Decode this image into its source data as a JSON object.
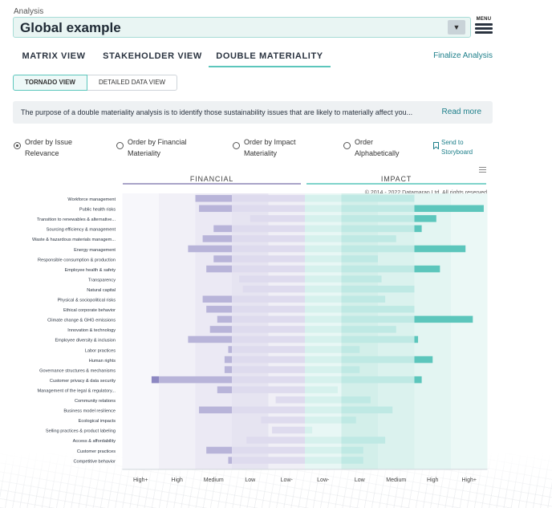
{
  "header": {
    "section_label": "Analysis",
    "selected_analysis": "Global example",
    "menu_label": "MENU"
  },
  "tabs": [
    {
      "label": "MATRIX VIEW",
      "active": false
    },
    {
      "label": "STAKEHOLDER VIEW",
      "active": false
    },
    {
      "label": "DOUBLE MATERIALITY",
      "active": true
    }
  ],
  "finalize_label": "Finalize Analysis",
  "subtabs": [
    {
      "label": "TORNADO VIEW",
      "active": true
    },
    {
      "label": "DETAILED DATA VIEW",
      "active": false
    }
  ],
  "info": {
    "text": "The purpose of a double materiality analysis is to identify those sustainability issues that are likely to materially affect you...",
    "read_more": "Read more"
  },
  "order_options": [
    {
      "label": "Order by Issue Relevance",
      "checked": true
    },
    {
      "label": "Order by Financial Materiality",
      "checked": false
    },
    {
      "label": "Order by Impact Materiality",
      "checked": false
    },
    {
      "label": "Order Alphabetically",
      "checked": false
    }
  ],
  "send_to_storyboard": "Send to Storyboard",
  "colors": {
    "accent": "#5cc6bc",
    "link": "#1d7f8a",
    "financial_dark": "#8d88c2",
    "financial_mid": "#b8b4d9",
    "impact_dark": "#5cc6bc",
    "impact_mid": "#a7e2dc"
  },
  "chart_data": {
    "type": "bar",
    "subtype": "tornado",
    "financial_label": "FINANCIAL",
    "impact_label": "IMPACT",
    "copyright": "© 2014 - 2022 Datamaran Ltd. All rights reserved",
    "x_tick_labels_financial": [
      "High+",
      "High",
      "Medium",
      "Low",
      "Low-"
    ],
    "x_tick_labels_impact": [
      "Low-",
      "Low",
      "Medium",
      "High",
      "High+"
    ],
    "scale_note": "Values on 0–5 scale; 0=center, 5=High+",
    "categories": [
      "Workforce management",
      "Public health risks",
      "Transition to renewables & alternative...",
      "Sourcing efficiency & management",
      "Waste & hazardous materials managem...",
      "Energy management",
      "Responsible consumption & production",
      "Employee health & safety",
      "Transparency",
      "Natural capital",
      "Physical & sociopolitical risks",
      "Ethical corporate behavior",
      "Climate change & GHG emissions",
      "Innovation & technology",
      "Employee diversity & inclusion",
      "Labor practices",
      "Human rights",
      "Governance structures & mechanisms",
      "Customer privacy & data security",
      "Management of the legal & regulatory...",
      "Community relations",
      "Business model resilience",
      "Ecological impacts",
      "Selling practices & product labeling",
      "Access & affordability",
      "Customer practices",
      "Competitive behavior"
    ],
    "series": [
      {
        "name": "Financial",
        "values": [
          3.0,
          2.9,
          1.5,
          2.5,
          2.8,
          3.2,
          2.5,
          2.7,
          1.8,
          1.7,
          2.8,
          2.7,
          2.4,
          2.6,
          3.2,
          2.1,
          2.2,
          2.2,
          4.2,
          2.4,
          0.8,
          2.9,
          1.2,
          0.9,
          1.6,
          2.7,
          2.1
        ]
      },
      {
        "name": "Impact",
        "values": [
          3.0,
          4.9,
          3.6,
          3.2,
          2.5,
          4.4,
          2.0,
          3.7,
          2.1,
          3.0,
          2.2,
          3.0,
          4.6,
          2.5,
          3.1,
          1.5,
          3.5,
          1.5,
          3.2,
          0.9,
          1.8,
          2.4,
          1.4,
          0.2,
          2.2,
          1.6,
          1.6
        ]
      }
    ]
  }
}
